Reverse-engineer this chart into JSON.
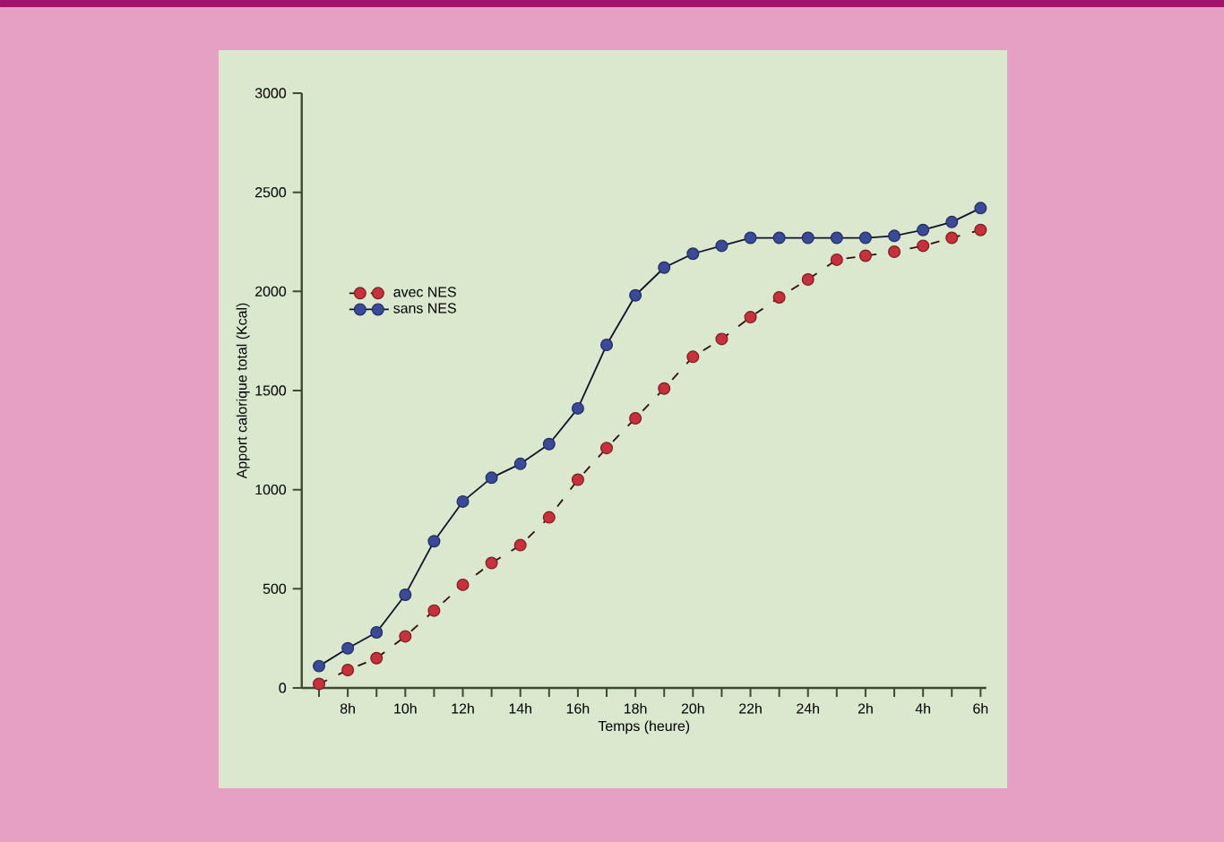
{
  "chart_data": {
    "type": "line",
    "xlabel": "Temps (heure)",
    "ylabel": "Apport calorique total (Kcal)",
    "ylim": [
      0,
      3000
    ],
    "yticks": [
      0,
      500,
      1000,
      1500,
      2000,
      2500,
      3000
    ],
    "categories": [
      null,
      "8h",
      null,
      "10h",
      null,
      "12h",
      null,
      "14h",
      null,
      "16h",
      null,
      "18h",
      null,
      "20h",
      null,
      "22h",
      null,
      "24h",
      null,
      "2h",
      null,
      "4h",
      null,
      "6h"
    ],
    "series": [
      {
        "name": "avec NES",
        "color": "#c8303a",
        "line_style": "dashed",
        "values": [
          20,
          90,
          150,
          260,
          390,
          520,
          630,
          720,
          860,
          1050,
          1210,
          1360,
          1510,
          1670,
          1760,
          1870,
          1970,
          2060,
          2160,
          2180,
          2200,
          2230,
          2270,
          2310
        ]
      },
      {
        "name": "sans NES",
        "color": "#3a4a9a",
        "line_style": "solid",
        "values": [
          110,
          200,
          280,
          470,
          740,
          940,
          1060,
          1130,
          1230,
          1410,
          1730,
          1980,
          2120,
          2190,
          2230,
          2270,
          2270,
          2270,
          2270,
          2270,
          2280,
          2310,
          2350,
          2420
        ]
      }
    ],
    "marker": "circle",
    "legend": "left",
    "grid": false
  }
}
